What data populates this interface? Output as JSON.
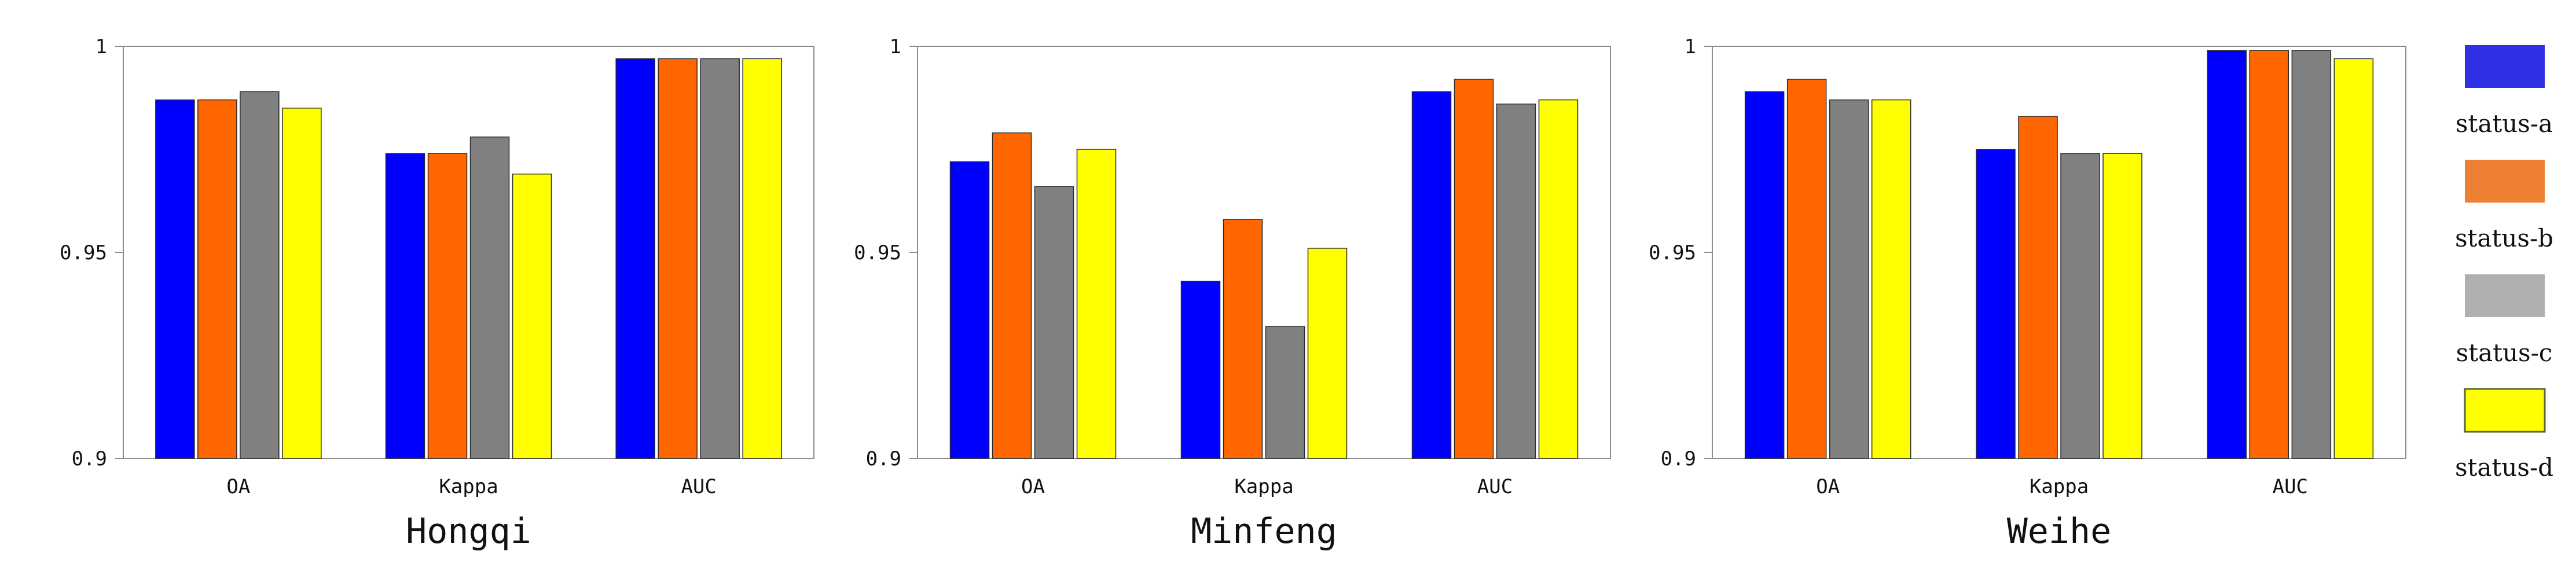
{
  "chart_data": [
    {
      "type": "bar",
      "title": "Hongqi",
      "categories": [
        "OA",
        "Kappa",
        "AUC"
      ],
      "ylim": [
        0.9,
        1.0
      ],
      "yticks": [
        "0.9",
        "0.95",
        "1"
      ],
      "series": [
        {
          "name": "status-a",
          "values": [
            0.987,
            0.974,
            0.997
          ]
        },
        {
          "name": "status-b",
          "values": [
            0.987,
            0.974,
            0.997
          ]
        },
        {
          "name": "status-c",
          "values": [
            0.989,
            0.978,
            0.997
          ]
        },
        {
          "name": "status-d",
          "values": [
            0.985,
            0.969,
            0.997
          ]
        }
      ]
    },
    {
      "type": "bar",
      "title": "Minfeng",
      "categories": [
        "OA",
        "Kappa",
        "AUC"
      ],
      "ylim": [
        0.9,
        1.0
      ],
      "yticks": [
        "0.9",
        "0.95",
        "1"
      ],
      "series": [
        {
          "name": "status-a",
          "values": [
            0.972,
            0.943,
            0.989
          ]
        },
        {
          "name": "status-b",
          "values": [
            0.979,
            0.958,
            0.992
          ]
        },
        {
          "name": "status-c",
          "values": [
            0.966,
            0.932,
            0.986
          ]
        },
        {
          "name": "status-d",
          "values": [
            0.975,
            0.951,
            0.987
          ]
        }
      ]
    },
    {
      "type": "bar",
      "title": "Weihe",
      "categories": [
        "OA",
        "Kappa",
        "AUC"
      ],
      "ylim": [
        0.9,
        1.0
      ],
      "yticks": [
        "0.9",
        "0.95",
        "1"
      ],
      "series": [
        {
          "name": "status-a",
          "values": [
            0.989,
            0.975,
            0.999
          ]
        },
        {
          "name": "status-b",
          "values": [
            0.992,
            0.983,
            0.999
          ]
        },
        {
          "name": "status-c",
          "values": [
            0.987,
            0.974,
            0.999
          ]
        },
        {
          "name": "status-d",
          "values": [
            0.987,
            0.974,
            0.997
          ]
        }
      ]
    }
  ],
  "legend": {
    "items": [
      {
        "label": "status-a",
        "color": "#0000ff",
        "swatch": "#2f2fe6"
      },
      {
        "label": "status-b",
        "color": "#ff6600",
        "swatch": "#ee8033"
      },
      {
        "label": "status-c",
        "color": "#808080",
        "swatch": "#b0aeae"
      },
      {
        "label": "status-d",
        "color": "#ffff00",
        "swatch": "#ffff00"
      }
    ]
  }
}
